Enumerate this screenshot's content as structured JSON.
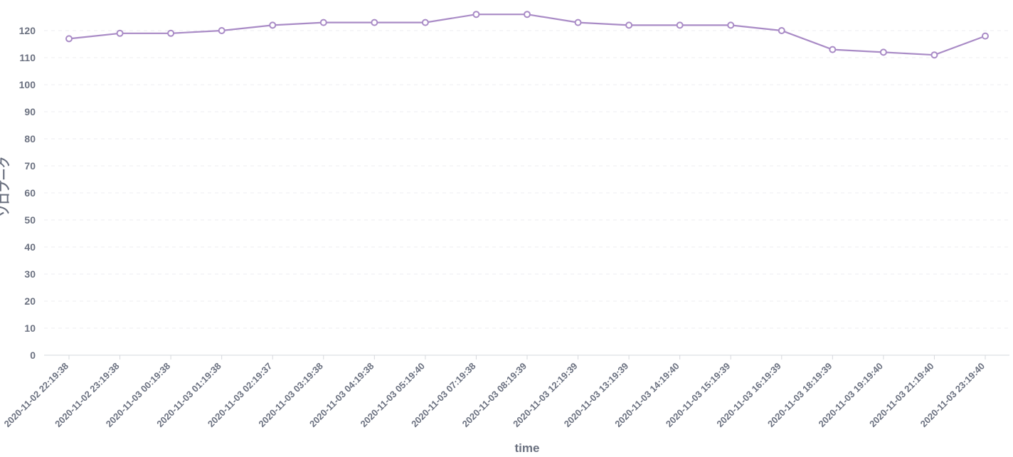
{
  "chart_data": {
    "type": "line",
    "xlabel": "time",
    "ylabel": "ソロプーク",
    "ylim": [
      0,
      125
    ],
    "yticks": [
      0,
      10,
      20,
      30,
      40,
      50,
      60,
      70,
      80,
      90,
      100,
      110,
      120
    ],
    "grid": true,
    "legend": "none",
    "categories": [
      "2020-11-02 22:19:38",
      "2020-11-02 23:19:38",
      "2020-11-03 00:19:38",
      "2020-11-03 01:19:38",
      "2020-11-03 02:19:37",
      "2020-11-03 03:19:38",
      "2020-11-03 04:19:38",
      "2020-11-03 05:19:40",
      "2020-11-03 07:19:38",
      "2020-11-03 08:19:39",
      "2020-11-03 12:19:39",
      "2020-11-03 13:19:39",
      "2020-11-03 14:19:40",
      "2020-11-03 15:19:39",
      "2020-11-03 16:19:39",
      "2020-11-03 18:19:39",
      "2020-11-03 19:19:40",
      "2020-11-03 21:19:40",
      "2020-11-03 23:19:40"
    ],
    "series": [
      {
        "color": "#a98bc6",
        "values": [
          117,
          119,
          119,
          120,
          122,
          123,
          123,
          123,
          126,
          126,
          123,
          122,
          122,
          122,
          120,
          113,
          112,
          111,
          118
        ]
      }
    ]
  }
}
